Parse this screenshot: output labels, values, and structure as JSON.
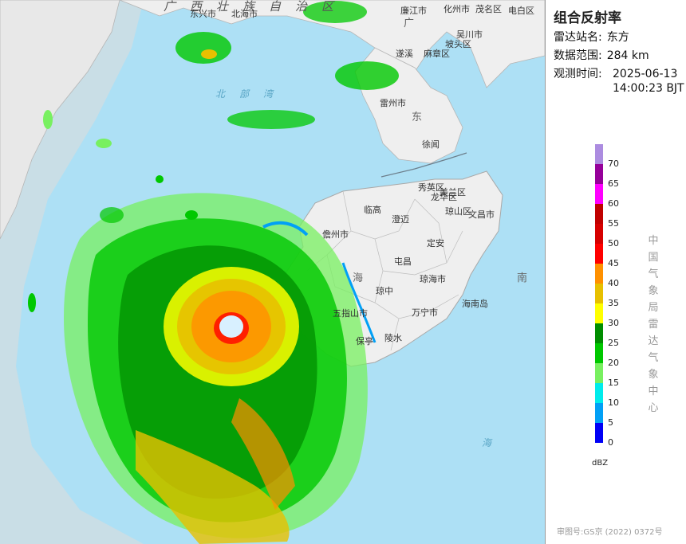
{
  "panel": {
    "title": "组合反射率",
    "station_key": "雷达站名:",
    "station_val": "东方",
    "range_key": "数据范围:",
    "range_val": "284 km",
    "time_key": "观测时间:",
    "time_date": "2025-06-13",
    "time_clock": "14:00:23 BJT",
    "source": "中国气象局雷达气象中心",
    "approval": "审图号:GS京 (2022) 0372号"
  },
  "legend": {
    "unit": "dBZ",
    "levels": [
      {
        "value": "70",
        "color": "#ac8ce0"
      },
      {
        "value": "65",
        "color": "#96009a"
      },
      {
        "value": "60",
        "color": "#ff00ff"
      },
      {
        "value": "55",
        "color": "#c00000"
      },
      {
        "value": "50",
        "color": "#d60000"
      },
      {
        "value": "45",
        "color": "#ff0000"
      },
      {
        "value": "40",
        "color": "#ff9000"
      },
      {
        "value": "35",
        "color": "#e7c000"
      },
      {
        "value": "30",
        "color": "#ffff00"
      },
      {
        "value": "25",
        "color": "#008e00"
      },
      {
        "value": "20",
        "color": "#00c800"
      },
      {
        "value": "15",
        "color": "#78f060"
      },
      {
        "value": "10",
        "color": "#00ecec"
      },
      {
        "value": "5",
        "color": "#01a0f6"
      },
      {
        "value": "0",
        "color": "#0000f6"
      }
    ]
  },
  "map_labels": {
    "guangxi": "广西壮族自治区",
    "beihai": "北海市",
    "dongxing": "东兴市",
    "lianjiang": "廉江市",
    "huazhou": "化州市",
    "maoming": "茂名区",
    "dianbai": "电白区",
    "guang": "广",
    "suixi": "遂溪",
    "mazhang": "麻章区",
    "wuchuan": "吴川市",
    "potou": "坡头区",
    "leizhou": "雷州市",
    "dong": "东",
    "xuwen": "徐闻",
    "beibu": "北部湾",
    "haikou_xiuying": "秀英区",
    "longhua": "龙华区",
    "meilan": "美兰区",
    "qiongshan": "琼山区",
    "wenchang": "文昌市",
    "lingao": "临高",
    "chengmai": "澄迈",
    "danzhou": "儋州市",
    "dingan": "定安",
    "tunchang": "屯昌",
    "qionghai": "琼海市",
    "qiongzhong": "琼中",
    "wanning": "万宁市",
    "hainan_dao": "海南岛",
    "wuzhishan": "五指山市",
    "lingshui": "陵水",
    "nan": "南",
    "hai": "海",
    "hai_label": "海",
    "baoting": "保亭",
    "nan_sea": "南"
  }
}
